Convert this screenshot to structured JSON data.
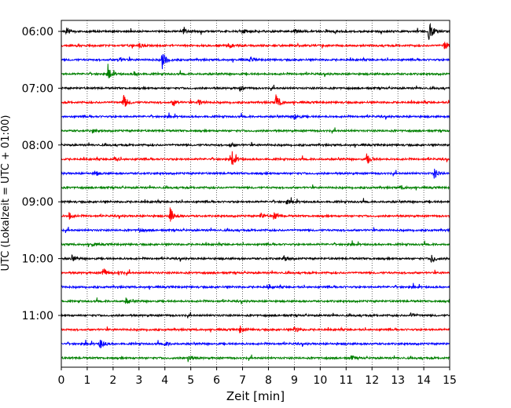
{
  "chart_data": {
    "type": "line",
    "subtype": "helicorder",
    "title": "",
    "xlabel": "Zeit  [min]",
    "ylabel": "UTC (Lokalzeit = UTC + 01:00)",
    "xlim": [
      0,
      15
    ],
    "x_ticks": [
      0,
      1,
      2,
      3,
      4,
      5,
      6,
      7,
      8,
      9,
      10,
      11,
      12,
      13,
      14,
      15
    ],
    "x_tick_labels": [
      "0",
      "1",
      "2",
      "3",
      "4",
      "5",
      "6",
      "7",
      "8",
      "9",
      "10",
      "11",
      "12",
      "13",
      "14",
      "15"
    ],
    "y_tick_labels": [
      "06:00",
      "07:00",
      "08:00",
      "09:00",
      "10:00",
      "11:00"
    ],
    "y_tick_rows": [
      0,
      4,
      8,
      12,
      16,
      20
    ],
    "minutes_per_line": 15,
    "grid": {
      "vertical": true,
      "style": "dotted"
    },
    "line_colors": [
      "#000000",
      "#ff0000",
      "#0000ff",
      "#008000"
    ],
    "lines": [
      {
        "start": "06:00",
        "color": "#000000",
        "events": [
          {
            "x": 0.2,
            "amp": 5
          },
          {
            "x": 4.7,
            "amp": 4
          },
          {
            "x": 7.0,
            "amp": 3
          },
          {
            "x": 9.0,
            "amp": 3
          },
          {
            "x": 14.2,
            "amp": 14
          }
        ]
      },
      {
        "start": "06:15",
        "color": "#ff0000",
        "events": [
          {
            "x": 3.0,
            "amp": 3
          },
          {
            "x": 6.5,
            "amp": 3
          },
          {
            "x": 14.8,
            "amp": 8
          }
        ]
      },
      {
        "start": "06:30",
        "color": "#0000ff",
        "events": [
          {
            "x": 2.2,
            "amp": 4
          },
          {
            "x": 3.9,
            "amp": 12
          },
          {
            "x": 7.3,
            "amp": 3
          }
        ]
      },
      {
        "start": "06:45",
        "color": "#008000",
        "events": [
          {
            "x": 1.8,
            "amp": 8
          },
          {
            "x": 2.8,
            "amp": 3
          }
        ]
      },
      {
        "start": "07:00",
        "color": "#000000",
        "events": [
          {
            "x": 6.9,
            "amp": 3
          }
        ]
      },
      {
        "start": "07:15",
        "color": "#ff0000",
        "events": [
          {
            "x": 2.4,
            "amp": 10
          },
          {
            "x": 4.3,
            "amp": 5
          },
          {
            "x": 5.3,
            "amp": 5
          },
          {
            "x": 8.3,
            "amp": 12
          }
        ]
      },
      {
        "start": "07:30",
        "color": "#0000ff",
        "events": [
          {
            "x": 9.0,
            "amp": 4
          }
        ]
      },
      {
        "start": "07:45",
        "color": "#008000",
        "events": [
          {
            "x": 1.2,
            "amp": 3
          }
        ]
      },
      {
        "start": "08:00",
        "color": "#000000",
        "events": [
          {
            "x": 6.5,
            "amp": 3
          }
        ]
      },
      {
        "start": "08:15",
        "color": "#ff0000",
        "events": [
          {
            "x": 2.0,
            "amp": 4
          },
          {
            "x": 6.6,
            "amp": 9
          },
          {
            "x": 11.8,
            "amp": 7
          }
        ]
      },
      {
        "start": "08:30",
        "color": "#0000ff",
        "events": [
          {
            "x": 1.3,
            "amp": 3
          },
          {
            "x": 14.4,
            "amp": 6
          }
        ]
      },
      {
        "start": "08:45",
        "color": "#008000",
        "events": [
          {
            "x": 13.1,
            "amp": 3
          }
        ]
      },
      {
        "start": "09:00",
        "color": "#000000",
        "events": [
          {
            "x": 8.7,
            "amp": 3
          }
        ]
      },
      {
        "start": "09:15",
        "color": "#ff0000",
        "events": [
          {
            "x": 0.3,
            "amp": 4
          },
          {
            "x": 4.2,
            "amp": 11
          },
          {
            "x": 8.2,
            "amp": 6
          },
          {
            "x": 7.7,
            "amp": 4
          }
        ]
      },
      {
        "start": "09:30",
        "color": "#0000ff",
        "events": [
          {
            "x": 3.0,
            "amp": 3
          }
        ]
      },
      {
        "start": "09:45",
        "color": "#008000",
        "events": [
          {
            "x": 1.2,
            "amp": 3
          }
        ]
      },
      {
        "start": "10:00",
        "color": "#000000",
        "events": [
          {
            "x": 0.4,
            "amp": 4
          },
          {
            "x": 8.6,
            "amp": 4
          },
          {
            "x": 14.3,
            "amp": 6
          }
        ]
      },
      {
        "start": "10:15",
        "color": "#ff0000",
        "events": [
          {
            "x": 1.6,
            "amp": 7
          },
          {
            "x": 2.2,
            "amp": 3
          }
        ]
      },
      {
        "start": "10:30",
        "color": "#0000ff",
        "events": [
          {
            "x": 8.0,
            "amp": 3
          }
        ]
      },
      {
        "start": "10:45",
        "color": "#008000",
        "events": [
          {
            "x": 2.5,
            "amp": 4
          }
        ]
      },
      {
        "start": "11:00",
        "color": "#000000",
        "events": [
          {
            "x": 13.5,
            "amp": 3
          }
        ]
      },
      {
        "start": "11:15",
        "color": "#ff0000",
        "events": [
          {
            "x": 6.9,
            "amp": 5
          },
          {
            "x": 9.0,
            "amp": 4
          }
        ]
      },
      {
        "start": "11:30",
        "color": "#0000ff",
        "events": [
          {
            "x": 1.5,
            "amp": 7
          },
          {
            "x": 4.0,
            "amp": 3
          }
        ]
      },
      {
        "start": "11:45",
        "color": "#008000",
        "events": [
          {
            "x": 4.9,
            "amp": 5
          },
          {
            "x": 11.2,
            "amp": 3
          }
        ]
      }
    ]
  }
}
